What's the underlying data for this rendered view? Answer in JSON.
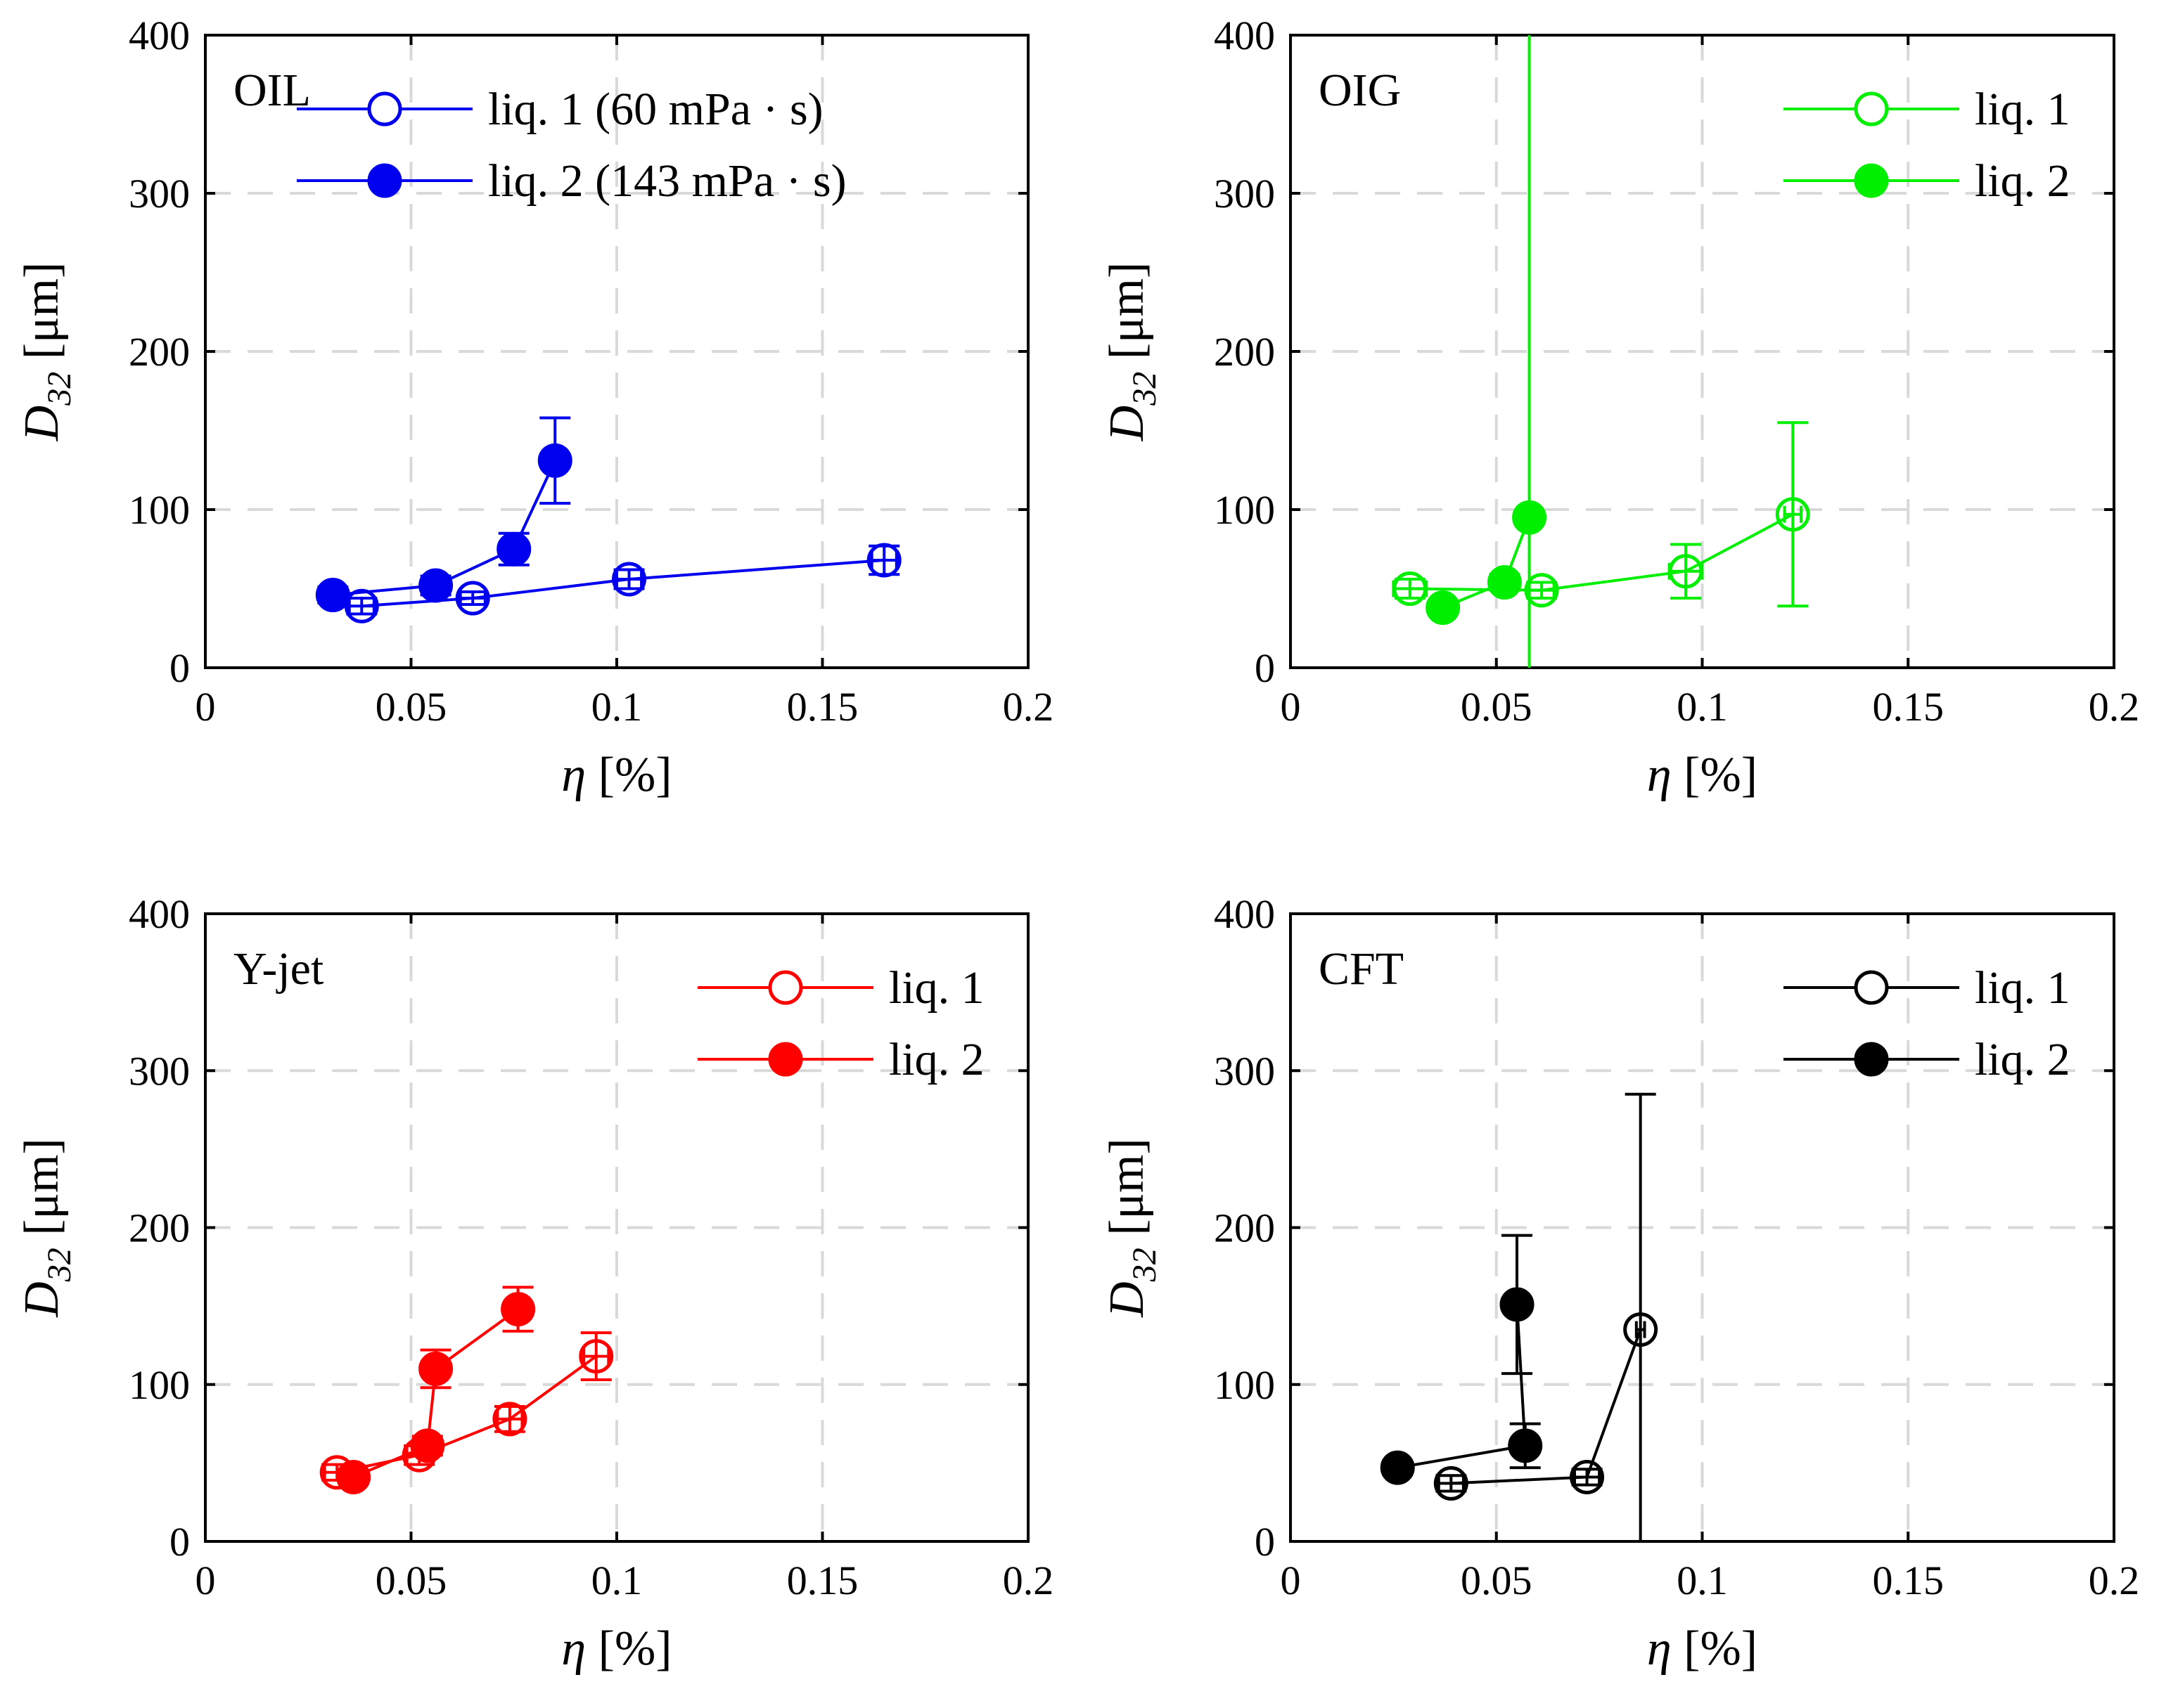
{
  "chart_data": [
    {
      "type": "scatter",
      "title": "OIL",
      "xlabel": "η [%]",
      "ylabel": "D32 [μm]",
      "ylabel_main": "D",
      "ylabel_sub": "32",
      "ylabel_unit": " [μm]",
      "xlim": [
        0,
        0.2
      ],
      "ylim": [
        0,
        400
      ],
      "xticks": [
        0,
        0.05,
        0.1,
        0.15,
        0.2
      ],
      "xtick_labels": [
        "0",
        "0.05",
        "0.1",
        "0.15",
        "0.2"
      ],
      "yticks": [
        0,
        100,
        200,
        300,
        400
      ],
      "ytick_labels": [
        "0",
        "100",
        "200",
        "300",
        "400"
      ],
      "grid": true,
      "legend_position": "top-right",
      "color": "#0000ee",
      "series": [
        {
          "name": "liq. 1 (60 mPa · s)",
          "marker": "open-circle",
          "points": [
            {
              "x": 0.038,
              "y": 39,
              "err": 5,
              "herr": 0.003
            },
            {
              "x": 0.065,
              "y": 44,
              "err": 4,
              "herr": 0.003
            },
            {
              "x": 0.103,
              "y": 56,
              "err": 6,
              "herr": 0.003
            },
            {
              "x": 0.165,
              "y": 68,
              "err": 9,
              "herr": 0.003
            }
          ]
        },
        {
          "name": "liq. 2 (143 mPa · s)",
          "marker": "filled-circle",
          "points": [
            {
              "x": 0.031,
              "y": 46,
              "err": 5,
              "herr": 0.002
            },
            {
              "x": 0.056,
              "y": 52,
              "err": 6,
              "herr": 0.002
            },
            {
              "x": 0.075,
              "y": 75,
              "err": 10,
              "herr": 0.003
            },
            {
              "x": 0.085,
              "y": 131,
              "err": 27,
              "herr": 0.002
            }
          ]
        }
      ]
    },
    {
      "type": "scatter",
      "title": "OIG",
      "xlabel": "η [%]",
      "ylabel": "D32 [μm]",
      "ylabel_main": "D",
      "ylabel_sub": "32",
      "ylabel_unit": " [μm]",
      "xlim": [
        0,
        0.2
      ],
      "ylim": [
        0,
        400
      ],
      "xticks": [
        0,
        0.05,
        0.1,
        0.15,
        0.2
      ],
      "xtick_labels": [
        "0",
        "0.05",
        "0.1",
        "0.15",
        "0.2"
      ],
      "yticks": [
        0,
        100,
        200,
        300,
        400
      ],
      "ytick_labels": [
        "0",
        "100",
        "200",
        "300",
        "400"
      ],
      "grid": true,
      "legend_position": "top-right",
      "color": "#00ee00",
      "series": [
        {
          "name": "liq. 1",
          "marker": "open-circle",
          "points": [
            {
              "x": 0.029,
              "y": 50,
              "err": 6,
              "herr": 0.004
            },
            {
              "x": 0.061,
              "y": 49,
              "err": 5,
              "herr": 0.003
            },
            {
              "x": 0.096,
              "y": 61,
              "err": 17,
              "herr": 0.004
            },
            {
              "x": 0.122,
              "y": 97,
              "err": 58,
              "herr": 0.002
            }
          ]
        },
        {
          "name": "liq. 2",
          "marker": "filled-circle",
          "points": [
            {
              "x": 0.037,
              "y": 38,
              "err": 4,
              "herr": 0.002
            },
            {
              "x": 0.052,
              "y": 54,
              "err": 5,
              "herr": 0.002
            },
            {
              "x": 0.058,
              "y": 95,
              "err": 420,
              "herr": 0.001
            }
          ]
        }
      ]
    },
    {
      "type": "scatter",
      "title": "Y-jet",
      "xlabel": "η [%]",
      "ylabel": "D32 [μm]",
      "ylabel_main": "D",
      "ylabel_sub": "32",
      "ylabel_unit": " [μm]",
      "xlim": [
        0,
        0.2
      ],
      "ylim": [
        0,
        400
      ],
      "xticks": [
        0,
        0.05,
        0.1,
        0.15,
        0.2
      ],
      "xtick_labels": [
        "0",
        "0.05",
        "0.1",
        "0.15",
        "0.2"
      ],
      "yticks": [
        0,
        100,
        200,
        300,
        400
      ],
      "ytick_labels": [
        "0",
        "100",
        "200",
        "300",
        "400"
      ],
      "grid": true,
      "legend_position": "top-right",
      "color": "#ff0000",
      "series": [
        {
          "name": "liq. 1",
          "marker": "open-circle",
          "points": [
            {
              "x": 0.032,
              "y": 44,
              "err": 5,
              "herr": 0.003
            },
            {
              "x": 0.052,
              "y": 55,
              "err": 6,
              "herr": 0.003
            },
            {
              "x": 0.074,
              "y": 78,
              "err": 8,
              "herr": 0.003
            },
            {
              "x": 0.095,
              "y": 118,
              "err": 15,
              "herr": 0.003
            }
          ]
        },
        {
          "name": "liq. 2",
          "marker": "filled-circle",
          "points": [
            {
              "x": 0.036,
              "y": 41,
              "err": 4,
              "herr": 0.003
            },
            {
              "x": 0.054,
              "y": 61,
              "err": 6,
              "herr": 0.003
            },
            {
              "x": 0.056,
              "y": 110,
              "err": 12,
              "herr": 0.003
            },
            {
              "x": 0.076,
              "y": 148,
              "err": 14,
              "herr": 0.003
            }
          ]
        }
      ]
    },
    {
      "type": "scatter",
      "title": "CFT",
      "xlabel": "η [%]",
      "ylabel": "D32 [μm]",
      "ylabel_main": "D",
      "ylabel_sub": "32",
      "ylabel_unit": " [μm]",
      "xlim": [
        0,
        0.2
      ],
      "ylim": [
        0,
        400
      ],
      "xticks": [
        0,
        0.05,
        0.1,
        0.15,
        0.2
      ],
      "xtick_labels": [
        "0",
        "0.05",
        "0.1",
        "0.15",
        "0.2"
      ],
      "yticks": [
        0,
        100,
        200,
        300,
        400
      ],
      "ytick_labels": [
        "0",
        "100",
        "200",
        "300",
        "400"
      ],
      "grid": true,
      "legend_position": "top-right",
      "color": "#000000",
      "series": [
        {
          "name": "liq. 1",
          "marker": "open-circle",
          "points": [
            {
              "x": 0.039,
              "y": 37,
              "err": 5,
              "herr": 0.003
            },
            {
              "x": 0.072,
              "y": 41,
              "err": 5,
              "herr": 0.003
            },
            {
              "x": 0.085,
              "y": 135,
              "err": 150,
              "herr": 0.001
            }
          ]
        },
        {
          "name": "liq. 2",
          "marker": "filled-circle",
          "points": [
            {
              "x": 0.026,
              "y": 47,
              "err": 4,
              "herr": 0.002
            },
            {
              "x": 0.057,
              "y": 61,
              "err": 14,
              "herr": 0.003
            },
            {
              "x": 0.055,
              "y": 151,
              "err": 44,
              "herr": 0.002
            }
          ]
        }
      ]
    }
  ]
}
